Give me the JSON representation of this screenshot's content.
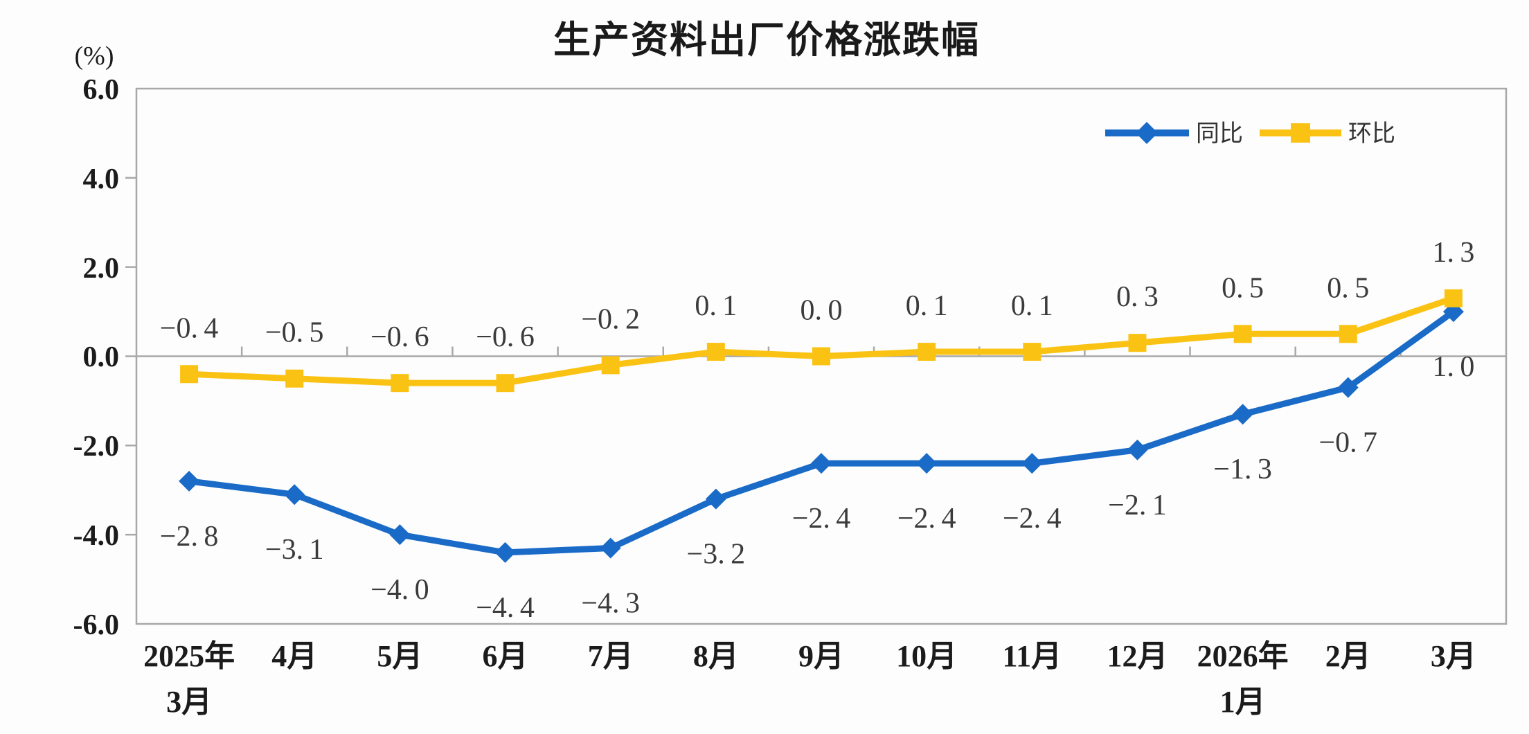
{
  "chart_data": {
    "type": "line",
    "title": "生产资料出厂价格涨跌幅",
    "ylabel": "(%)",
    "categories": [
      "2025年\n3月",
      "4月",
      "5月",
      "6月",
      "7月",
      "8月",
      "9月",
      "10月",
      "11月",
      "12月",
      "2026年\n1月",
      "2月",
      "3月"
    ],
    "series": [
      {
        "key": "yoy",
        "name": "同比",
        "color": "#1a6bc7",
        "marker": "diamond",
        "label_side": "below",
        "values": [
          -2.8,
          -3.1,
          -4.0,
          -4.4,
          -4.3,
          -3.2,
          -2.4,
          -2.4,
          -2.4,
          -2.1,
          -1.3,
          -0.7,
          1.0
        ],
        "point_labels": [
          "-2.8",
          "-3.1",
          "-4.0",
          "-4.4",
          "-4.3",
          "-3.2",
          "-2.4",
          "-2.4",
          "-2.4",
          "-2.1",
          "-1.3",
          "-0.7",
          "1.0"
        ]
      },
      {
        "key": "mom",
        "name": "环比",
        "color": "#fac314",
        "marker": "square",
        "label_side": "above",
        "values": [
          -0.4,
          -0.5,
          -0.6,
          -0.6,
          -0.2,
          0.1,
          0.0,
          0.1,
          0.1,
          0.3,
          0.5,
          0.5,
          1.3
        ],
        "point_labels": [
          "-0.4",
          "-0.5",
          "-0.6",
          "-0.6",
          "-0.2",
          "0.1",
          "0.0",
          "0.1",
          "0.1",
          "0.3",
          "0.5",
          "0.5",
          "1.3"
        ]
      }
    ],
    "y_axis": {
      "min": -6,
      "max": 6,
      "step": 2,
      "tick_labels": [
        "6.0",
        "4.0",
        "2.0",
        "0.0",
        "-2.0",
        "-4.0",
        "-6.0"
      ]
    },
    "legend_position": "top-right",
    "grid": false,
    "colors": {
      "axis_line": "#a8a8a8",
      "axis_tick": "#a8a8a8",
      "tick_label": "#1b1b1b",
      "data_label": "#3b3b3b",
      "title": "#1a1a1a",
      "background": "#fdfdfd"
    }
  }
}
